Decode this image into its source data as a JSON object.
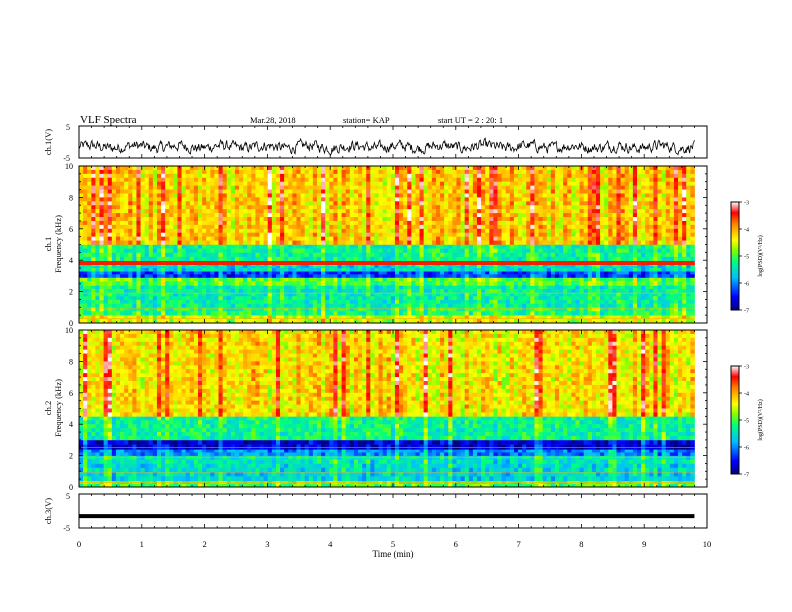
{
  "header": {
    "title": "VLF Spectra",
    "date": "Mar.28, 2018",
    "station": "station= KAP",
    "start": "start  UT =   2 : 20: 1"
  },
  "colors": {
    "ch1_trace": "#000000",
    "ch3_trace": "#000000",
    "colormap": [
      "#00007f",
      "#0000ff",
      "#00bfff",
      "#00ff7f",
      "#7fff00",
      "#ffff00",
      "#ff7f00",
      "#ff0000",
      "#ffffff"
    ]
  },
  "chart_data": [
    {
      "type": "line",
      "name": "ch1-waveform",
      "ylabel": "ch.1(V)",
      "ylim": [
        -5,
        5
      ],
      "yticks": [
        "5",
        "-5"
      ],
      "xlim": [
        0,
        10
      ],
      "description_series": "noisy waveform around -1.5 V spanning 0 to 9.8 min",
      "x_end": 9.8,
      "baseline": -1.5,
      "amplitude": 1.6
    },
    {
      "type": "heatmap",
      "name": "ch1-spectrogram",
      "ylabel": "ch.1\nFrequency (kHz)",
      "ylabel_line1": "ch.1",
      "ylabel_line2": "Frequency (kHz)",
      "ylim": [
        0,
        10
      ],
      "yticks": [
        "0",
        "2",
        "4",
        "6",
        "8",
        "10"
      ],
      "xlim": [
        0,
        9.8
      ],
      "colorbar": {
        "label": "log(PSD)(V²/Hz)",
        "range": [
          -7,
          -3
        ],
        "ticks": [
          "-3",
          "-4",
          "-5",
          "-6",
          "-7"
        ]
      },
      "bands": [
        {
          "f": [
            0,
            0.5
          ],
          "level": -4.6
        },
        {
          "f": [
            0.5,
            1.0
          ],
          "level": -5.2
        },
        {
          "f": [
            1.0,
            2.4
          ],
          "level": -5.4
        },
        {
          "f": [
            2.4,
            2.9
          ],
          "level": -5.0
        },
        {
          "f": [
            2.9,
            3.3
          ],
          "level": -6.3
        },
        {
          "f": [
            3.3,
            3.7
          ],
          "level": -5.6
        },
        {
          "f": [
            3.7,
            3.95
          ],
          "level": -3.3
        },
        {
          "f": [
            3.95,
            5.0
          ],
          "level": -5.3
        },
        {
          "f": [
            5.0,
            10.0
          ],
          "level": -4.2
        }
      ]
    },
    {
      "type": "heatmap",
      "name": "ch2-spectrogram",
      "ylabel_line1": "ch.2",
      "ylabel_line2": "Frequency (kHz)",
      "ylim": [
        0,
        10
      ],
      "yticks": [
        "0",
        "2",
        "4",
        "6",
        "8",
        "10"
      ],
      "xlim": [
        0,
        9.8
      ],
      "colorbar": {
        "label": "log(PSD)(V²/Hz)",
        "range": [
          -7,
          -3
        ],
        "ticks": [
          "-3",
          "-4",
          "-5",
          "-6",
          "-7"
        ]
      },
      "bands": [
        {
          "f": [
            0,
            0.4
          ],
          "level": -5.0
        },
        {
          "f": [
            0.4,
            1.5
          ],
          "level": -5.6
        },
        {
          "f": [
            1.5,
            2.0
          ],
          "level": -5.5
        },
        {
          "f": [
            2.0,
            2.4
          ],
          "level": -6.0
        },
        {
          "f": [
            2.4,
            3.0
          ],
          "level": -6.7
        },
        {
          "f": [
            3.0,
            4.5
          ],
          "level": -5.3
        },
        {
          "f": [
            4.5,
            10.0
          ],
          "level": -4.3
        }
      ]
    },
    {
      "type": "line",
      "name": "ch3-waveform",
      "ylabel": "ch.3(V)",
      "ylim": [
        -5,
        5
      ],
      "yticks": [
        "5",
        "-5"
      ],
      "xlim": [
        0,
        10
      ],
      "x_end": 9.8,
      "constant_value": -1.5,
      "xlabel": "Time (min)",
      "xticks": [
        "0",
        "1",
        "2",
        "3",
        "4",
        "5",
        "6",
        "7",
        "8",
        "9",
        "10"
      ]
    }
  ]
}
